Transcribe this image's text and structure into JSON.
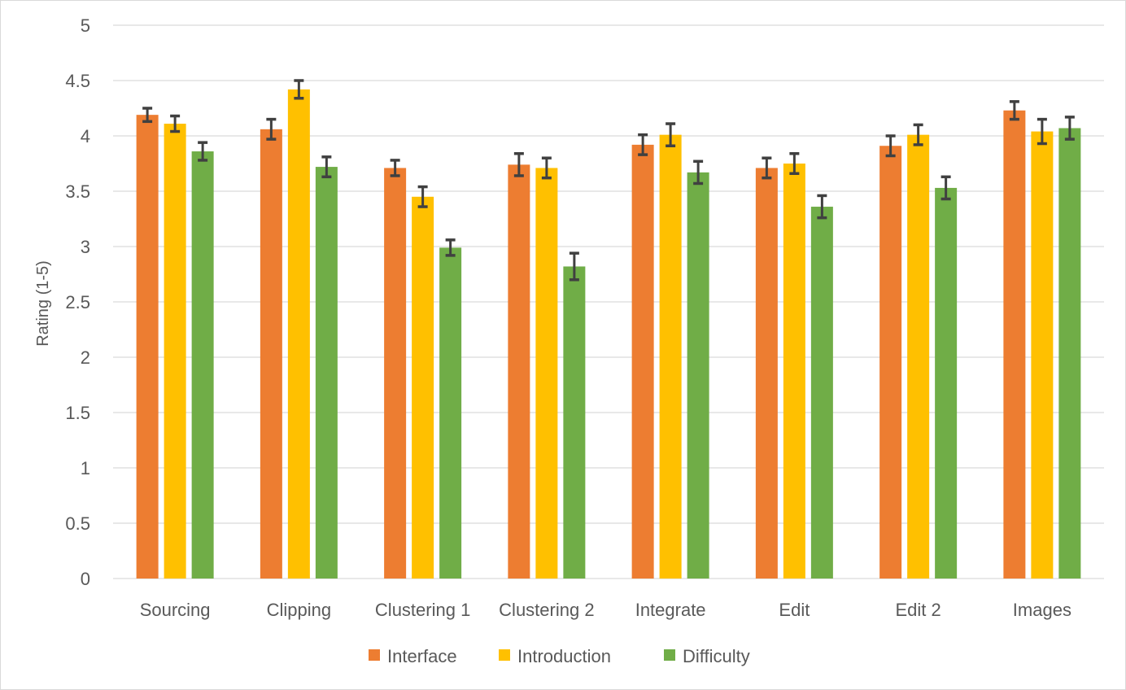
{
  "chart_data": {
    "type": "bar",
    "title": "",
    "xlabel": "",
    "ylabel": "Rating (1-5)",
    "ylim": [
      0,
      5
    ],
    "yticks": [
      0,
      0.5,
      1,
      1.5,
      2,
      2.5,
      3,
      3.5,
      4,
      4.5,
      5
    ],
    "ytick_labels": [
      "0",
      "0.5",
      "1",
      "1.5",
      "2",
      "2.5",
      "3",
      "3.5",
      "4",
      "4.5",
      "5"
    ],
    "grid": true,
    "legend_position": "bottom",
    "categories": [
      "Sourcing",
      "Clipping",
      "Clustering 1",
      "Clustering 2",
      "Integrate",
      "Edit",
      "Edit 2",
      "Images"
    ],
    "series": [
      {
        "name": "Interface",
        "color": "#ED7D31",
        "values": [
          4.19,
          4.06,
          3.71,
          3.74,
          3.92,
          3.71,
          3.91,
          4.23
        ],
        "errors": [
          0.06,
          0.09,
          0.07,
          0.1,
          0.09,
          0.09,
          0.09,
          0.08
        ]
      },
      {
        "name": "Introduction",
        "color": "#FFC000",
        "values": [
          4.11,
          4.42,
          3.45,
          3.71,
          4.01,
          3.75,
          4.01,
          4.04
        ],
        "errors": [
          0.07,
          0.08,
          0.09,
          0.09,
          0.1,
          0.09,
          0.09,
          0.11
        ]
      },
      {
        "name": "Difficulty",
        "color": "#70AD47",
        "values": [
          3.86,
          3.72,
          2.99,
          2.82,
          3.67,
          3.36,
          3.53,
          4.07
        ],
        "errors": [
          0.08,
          0.09,
          0.07,
          0.12,
          0.1,
          0.1,
          0.1,
          0.1
        ]
      }
    ],
    "colors": {
      "gridline": "#D9D9D9",
      "error_bar": "#404040",
      "text": "#595959"
    }
  }
}
